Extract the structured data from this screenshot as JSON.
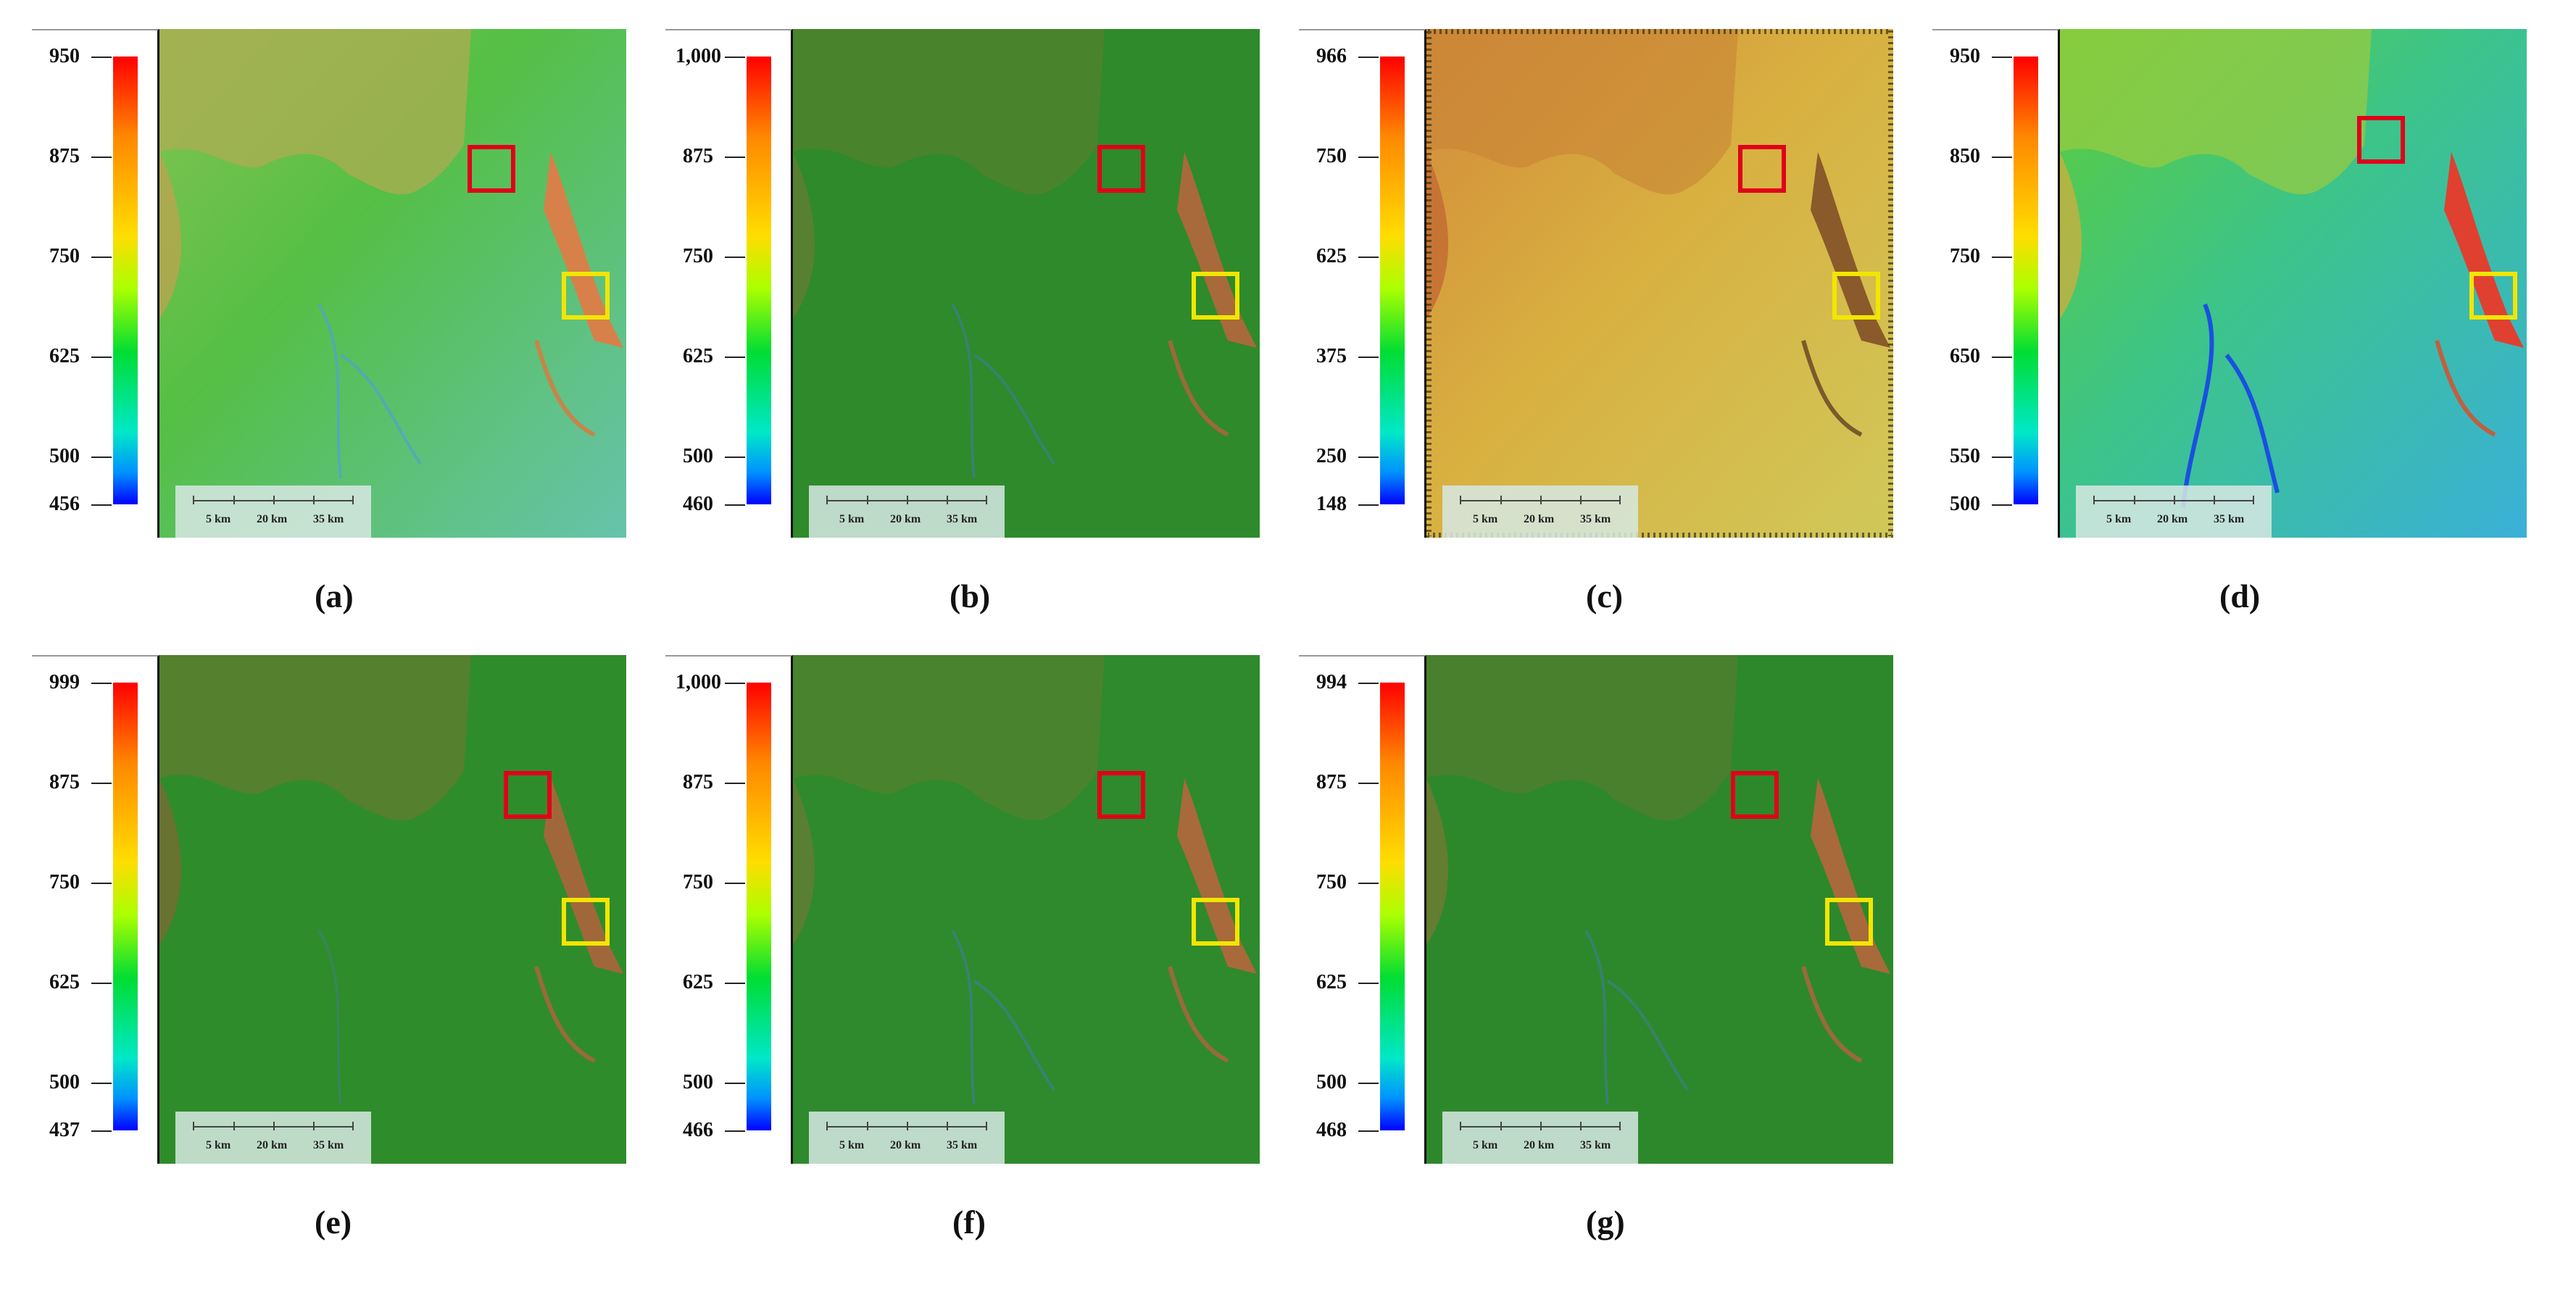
{
  "panels": [
    {
      "id": "a",
      "label": "(a)",
      "ticks": [
        "950",
        "875",
        "750",
        "625",
        "500",
        "456"
      ],
      "style": "hillshade-light"
    },
    {
      "id": "b",
      "label": "(b)",
      "ticks": [
        "1,000",
        "875",
        "750",
        "625",
        "500",
        "460"
      ],
      "style": "dark-green"
    },
    {
      "id": "c",
      "label": "(c)",
      "ticks": [
        "966",
        "750",
        "625",
        "375",
        "250",
        "148"
      ],
      "style": "yellow-relief"
    },
    {
      "id": "d",
      "label": "(d)",
      "ticks": [
        "950",
        "850",
        "750",
        "650",
        "550",
        "500"
      ],
      "style": "bright-blue"
    },
    {
      "id": "e",
      "label": "(e)",
      "ticks": [
        "999",
        "875",
        "750",
        "625",
        "500",
        "437"
      ],
      "style": "dark-green"
    },
    {
      "id": "f",
      "label": "(f)",
      "ticks": [
        "1,000",
        "875",
        "750",
        "625",
        "500",
        "466"
      ],
      "style": "dark-green"
    },
    {
      "id": "g",
      "label": "(g)",
      "ticks": [
        "994",
        "875",
        "750",
        "625",
        "500",
        "468"
      ],
      "style": "dark-green"
    }
  ],
  "scale_bar": {
    "labels": [
      "5 km",
      "20 km",
      "35 km"
    ]
  },
  "colors": {
    "red_box": "#e0001a",
    "yellow_box": "#f2e600"
  }
}
